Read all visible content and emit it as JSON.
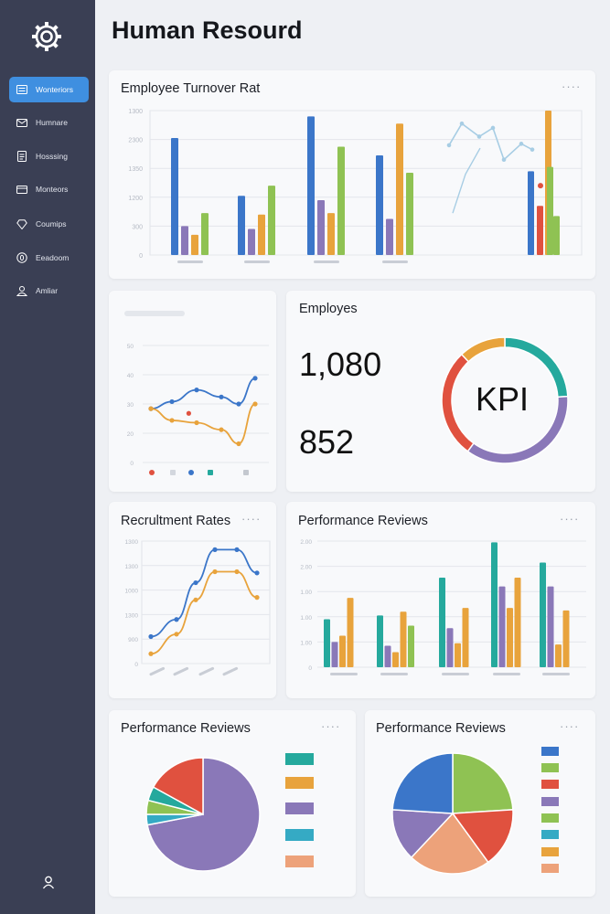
{
  "sidebar": {
    "logo_icon": "gear-icon",
    "items": [
      {
        "label": "Wonteriors",
        "icon": "list-icon",
        "active": true
      },
      {
        "label": "Humnare",
        "icon": "envelope-icon",
        "active": false
      },
      {
        "label": "Hosssing",
        "icon": "document-icon",
        "active": false
      },
      {
        "label": "Monteors",
        "icon": "card-icon",
        "active": false
      },
      {
        "label": "Coumips",
        "icon": "diamond-icon",
        "active": false
      },
      {
        "label": "Eeadoom",
        "icon": "circle-icon",
        "active": false
      },
      {
        "label": "Amliar",
        "icon": "person-icon",
        "active": false
      }
    ],
    "user_icon": "user-icon"
  },
  "header": {
    "title": "Human Resourd"
  },
  "turnover": {
    "title": "Employee Turnover Rat",
    "menu": "····"
  },
  "employees": {
    "title": "Employes",
    "value1": "1,080",
    "value2": "852",
    "kpi_label": "KPI"
  },
  "recruitment": {
    "title": "Recrultment Rates",
    "menu": "····"
  },
  "performance": {
    "title": "Performance Reviews",
    "menu": "····"
  },
  "pie_left": {
    "title": "Performance Reviews",
    "menu": "····"
  },
  "pie_right": {
    "title": "Performance Reviews",
    "menu": "····"
  },
  "colors": {
    "blue": "#3b76c9",
    "purple": "#8a78b8",
    "orange": "#e8a33c",
    "green": "#8fc253",
    "red": "#e0513f",
    "teal": "#25a99d",
    "cyan": "#35aac4",
    "salmon": "#eda27a",
    "lightblue": "#a7cde4",
    "accent": "#3f8fe0"
  },
  "chart_data": [
    {
      "id": "turnover",
      "type": "bar",
      "ylabels": [
        "1300",
        "2300",
        "1350",
        "1200",
        "300",
        "0"
      ],
      "groups": [
        {
          "values": [
            0.81,
            0.2,
            0.14,
            0.29
          ]
        },
        {
          "values": [
            0.41,
            0.18,
            0.28,
            0.48
          ]
        },
        {
          "values": [
            0.96,
            0.38,
            0.29,
            0.75
          ]
        },
        {
          "values": [
            0.69,
            0.25,
            0.91,
            0.57
          ]
        }
      ],
      "series_colors": [
        "blue",
        "purple",
        "orange",
        "green"
      ],
      "extra_line": {
        "values": [
          0.76,
          0.91,
          0.82,
          0.88,
          0.66,
          0.77,
          0.73
        ],
        "color": "lightblue"
      },
      "extra_line2": {
        "values": [
          0.29,
          0.56,
          0.74
        ],
        "color": "lightblue"
      },
      "extra_bars": [
        {
          "value": 0.58,
          "color": "blue"
        },
        {
          "value": 0.34,
          "color": "red"
        },
        {
          "value": 1.0,
          "color": "orange"
        },
        {
          "value": 0.61,
          "color": "green"
        },
        {
          "value": 0.27,
          "color": "green"
        }
      ],
      "extra_dot": {
        "value": 0.48,
        "color": "red"
      }
    },
    {
      "id": "small_line",
      "type": "line",
      "ylabels": [
        "50",
        "40",
        "30",
        "20",
        "0"
      ],
      "series": [
        {
          "color": "blue",
          "values": [
            23,
            26,
            31,
            28,
            25,
            36
          ]
        },
        {
          "color": "orange",
          "values": [
            23,
            18,
            17,
            14,
            8,
            25
          ]
        }
      ],
      "extra_points": [
        {
          "x_index": 1.8,
          "value": 21,
          "color": "red"
        }
      ],
      "legend_colors": [
        "red",
        "#d3d7de",
        "blue",
        "teal",
        "#c4c8cf"
      ]
    },
    {
      "id": "kpi_donut",
      "type": "pie",
      "values": [
        24,
        36,
        28,
        12
      ],
      "colors": [
        "teal",
        "purple",
        "red",
        "orange"
      ]
    },
    {
      "id": "recruitment",
      "type": "line",
      "ylabels": [
        "1300",
        "1300",
        "1000",
        "1300",
        "900",
        "0"
      ],
      "series": [
        {
          "color": "blue",
          "values": [
            0.22,
            0.36,
            0.66,
            0.93,
            0.93,
            0.74
          ]
        },
        {
          "color": "orange",
          "values": [
            0.08,
            0.24,
            0.52,
            0.75,
            0.75,
            0.54
          ]
        }
      ]
    },
    {
      "id": "performance",
      "type": "bar",
      "ylabels": [
        "2.00",
        "2.00",
        "1.00",
        "1.00",
        "1.00",
        "0"
      ],
      "groups": [
        {
          "values": [
            0.38,
            0.2,
            0.25,
            0.55
          ]
        },
        {
          "values": [
            0.41,
            0.17,
            0.12,
            0.44,
            0.33
          ]
        },
        {
          "values": [
            0.71,
            0.31,
            0.19,
            0.47
          ]
        },
        {
          "values": [
            0.99,
            0.64,
            0.47,
            0.71
          ]
        },
        {
          "values": [
            0.83,
            0.64,
            0.18,
            0.45
          ]
        }
      ],
      "series_colors": [
        "teal",
        "purple",
        "orange",
        "orange",
        "green"
      ]
    },
    {
      "id": "pie_left",
      "type": "pie",
      "values": [
        72,
        3,
        4,
        4,
        17
      ],
      "colors": [
        "purple",
        "cyan",
        "green",
        "teal",
        "red"
      ],
      "legend_colors": [
        "teal",
        "orange",
        "purple",
        "cyan",
        "salmon"
      ]
    },
    {
      "id": "pie_right",
      "type": "pie",
      "values": [
        24,
        16,
        22,
        14,
        24
      ],
      "colors": [
        "green",
        "red",
        "salmon",
        "purple",
        "blue"
      ],
      "legend_colors": [
        "blue",
        "green",
        "red",
        "purple",
        "green",
        "cyan",
        "orange",
        "salmon"
      ]
    }
  ]
}
